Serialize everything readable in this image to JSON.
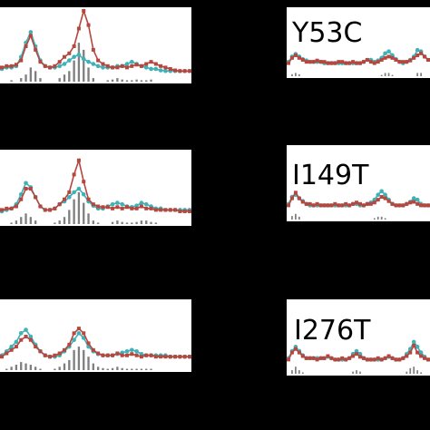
{
  "colors": {
    "background": "#000000",
    "panel": "#ffffff",
    "red_series": "#b5473f",
    "cyan_series": "#3fb1b7",
    "bars": "#7f7f7f"
  },
  "chart_data": [
    {
      "type": "line",
      "title": "",
      "xlabel": "",
      "ylabel": "",
      "x": [
        1,
        2,
        3,
        4,
        5,
        6,
        7,
        8,
        9,
        10,
        11,
        12,
        13,
        14,
        15,
        16,
        17,
        18,
        19,
        20,
        21,
        22,
        23,
        24,
        25,
        26,
        27,
        28,
        29,
        30,
        31,
        32,
        33,
        34,
        35,
        36,
        37,
        38,
        39,
        40
      ],
      "ylim": [
        0,
        1
      ],
      "series": [
        {
          "values": [
            0.2,
            0.22,
            0.22,
            0.24,
            0.3,
            0.5,
            0.65,
            0.45,
            0.28,
            0.22,
            0.2,
            0.22,
            0.28,
            0.35,
            0.4,
            0.5,
            0.75,
            1.0,
            0.8,
            0.45,
            0.3,
            0.25,
            0.22,
            0.2,
            0.2,
            0.22,
            0.2,
            0.22,
            0.24,
            0.22,
            0.25,
            0.28,
            0.25,
            0.22,
            0.2,
            0.18,
            0.16,
            0.15,
            0.15,
            0.15
          ]
        },
        {
          "values": [
            0.18,
            0.2,
            0.2,
            0.22,
            0.35,
            0.55,
            0.7,
            0.5,
            0.3,
            0.22,
            0.2,
            0.2,
            0.22,
            0.25,
            0.3,
            0.35,
            0.38,
            0.32,
            0.28,
            0.25,
            0.22,
            0.2,
            0.2,
            0.2,
            0.22,
            0.22,
            0.25,
            0.28,
            0.25,
            0.22,
            0.2,
            0.18,
            0.18,
            0.16,
            0.15,
            0.15,
            0.15,
            0.15,
            0.15,
            0.15
          ]
        },
        {
          "type": "bar",
          "values": [
            0,
            0,
            0.02,
            0,
            0.05,
            0.1,
            0.2,
            0.15,
            0.05,
            0,
            0,
            0,
            0.05,
            0.1,
            0.15,
            0.3,
            0.55,
            0.45,
            0.2,
            0.05,
            0,
            0,
            0.02,
            0.03,
            0.05,
            0.03,
            0.02,
            0.02,
            0.03,
            0.02,
            0.02,
            0.03,
            0,
            0,
            0,
            0,
            0,
            0,
            0,
            0
          ]
        }
      ]
    },
    {
      "type": "line",
      "title": "Y53C",
      "x": [
        1,
        2,
        3,
        4,
        5,
        6,
        7,
        8,
        9,
        10,
        11,
        12,
        13,
        14,
        15,
        16,
        17,
        18,
        19,
        20,
        21,
        22,
        23,
        24,
        25,
        26,
        27,
        28,
        29,
        30,
        31,
        32,
        33,
        34,
        35,
        36,
        37,
        38,
        39,
        40
      ],
      "ylim": [
        0,
        1
      ],
      "series": [
        {
          "values": [
            0.2,
            0.28,
            0.32,
            0.28,
            0.25,
            0.22,
            0.22,
            0.22,
            0.24,
            0.22,
            0.22,
            0.2,
            0.2,
            0.2,
            0.22,
            0.22,
            0.2,
            0.2,
            0.22,
            0.2,
            0.2,
            0.22,
            0.25,
            0.22,
            0.2,
            0.22,
            0.25,
            0.28,
            0.3,
            0.28,
            0.25,
            0.22,
            0.22,
            0.22,
            0.24,
            0.28,
            0.32,
            0.35,
            0.3,
            0.25
          ]
        },
        {
          "values": [
            0.22,
            0.3,
            0.34,
            0.3,
            0.26,
            0.24,
            0.22,
            0.22,
            0.22,
            0.22,
            0.2,
            0.2,
            0.2,
            0.2,
            0.2,
            0.2,
            0.2,
            0.2,
            0.2,
            0.2,
            0.2,
            0.22,
            0.25,
            0.25,
            0.22,
            0.24,
            0.28,
            0.35,
            0.38,
            0.32,
            0.26,
            0.22,
            0.2,
            0.22,
            0.25,
            0.3,
            0.4,
            0.38,
            0.3,
            0.25
          ]
        },
        {
          "type": "bar",
          "values": [
            0,
            0.03,
            0.05,
            0.03,
            0,
            0,
            0,
            0,
            0,
            0,
            0,
            0,
            0,
            0,
            0,
            0,
            0,
            0,
            0,
            0,
            0,
            0,
            0,
            0,
            0,
            0,
            0.02,
            0.05,
            0.05,
            0.02,
            0,
            0,
            0,
            0,
            0,
            0,
            0.05,
            0.05,
            0,
            0
          ]
        }
      ]
    },
    {
      "type": "line",
      "title": "",
      "x": [
        1,
        2,
        3,
        4,
        5,
        6,
        7,
        8,
        9,
        10,
        11,
        12,
        13,
        14,
        15,
        16,
        17,
        18,
        19,
        20,
        21,
        22,
        23,
        24,
        25,
        26,
        27,
        28,
        29,
        30,
        31,
        32,
        33,
        34,
        35,
        36,
        37,
        38,
        39,
        40
      ],
      "ylim": [
        0,
        1
      ],
      "series": [
        {
          "values": [
            0.2,
            0.22,
            0.22,
            0.25,
            0.35,
            0.5,
            0.5,
            0.38,
            0.25,
            0.2,
            0.2,
            0.22,
            0.28,
            0.35,
            0.45,
            0.7,
            0.9,
            0.6,
            0.35,
            0.28,
            0.25,
            0.24,
            0.24,
            0.22,
            0.24,
            0.22,
            0.24,
            0.22,
            0.22,
            0.25,
            0.22,
            0.22,
            0.2,
            0.2,
            0.2,
            0.2,
            0.2,
            0.18,
            0.18,
            0.18
          ]
        },
        {
          "values": [
            0.18,
            0.2,
            0.22,
            0.28,
            0.42,
            0.58,
            0.52,
            0.38,
            0.25,
            0.2,
            0.2,
            0.22,
            0.28,
            0.32,
            0.38,
            0.45,
            0.5,
            0.42,
            0.32,
            0.26,
            0.22,
            0.22,
            0.25,
            0.28,
            0.3,
            0.28,
            0.25,
            0.24,
            0.26,
            0.3,
            0.28,
            0.25,
            0.22,
            0.22,
            0.2,
            0.2,
            0.2,
            0.2,
            0.2,
            0.2
          ]
        },
        {
          "type": "bar",
          "values": [
            0,
            0,
            0.02,
            0.05,
            0.1,
            0.15,
            0.1,
            0.05,
            0,
            0,
            0,
            0.02,
            0.05,
            0.1,
            0.2,
            0.35,
            0.45,
            0.3,
            0.15,
            0.05,
            0.02,
            0,
            0,
            0.03,
            0.05,
            0.03,
            0.02,
            0.02,
            0.03,
            0.05,
            0.05,
            0.03,
            0.02,
            0,
            0,
            0,
            0,
            0,
            0,
            0
          ]
        }
      ]
    },
    {
      "type": "line",
      "title": "I149T",
      "x": [
        1,
        2,
        3,
        4,
        5,
        6,
        7,
        8,
        9,
        10,
        11,
        12,
        13,
        14,
        15,
        16,
        17,
        18,
        19,
        20,
        21,
        22,
        23,
        24,
        25,
        26,
        27,
        28,
        29,
        30,
        31,
        32,
        33,
        34,
        35,
        36,
        37,
        38,
        39,
        40
      ],
      "ylim": [
        0,
        1
      ],
      "series": [
        {
          "values": [
            0.2,
            0.3,
            0.38,
            0.3,
            0.25,
            0.22,
            0.22,
            0.2,
            0.22,
            0.2,
            0.2,
            0.2,
            0.2,
            0.22,
            0.2,
            0.2,
            0.22,
            0.2,
            0.22,
            0.24,
            0.22,
            0.2,
            0.22,
            0.22,
            0.24,
            0.28,
            0.32,
            0.3,
            0.26,
            0.22,
            0.2,
            0.2,
            0.2,
            0.22,
            0.24,
            0.25,
            0.22,
            0.2,
            0.2,
            0.2
          ]
        },
        {
          "values": [
            0.22,
            0.32,
            0.35,
            0.3,
            0.26,
            0.22,
            0.2,
            0.2,
            0.2,
            0.2,
            0.2,
            0.2,
            0.2,
            0.2,
            0.2,
            0.2,
            0.2,
            0.2,
            0.22,
            0.22,
            0.2,
            0.2,
            0.22,
            0.24,
            0.28,
            0.35,
            0.4,
            0.35,
            0.28,
            0.22,
            0.2,
            0.2,
            0.2,
            0.22,
            0.25,
            0.3,
            0.28,
            0.22,
            0.2,
            0.2
          ]
        },
        {
          "type": "bar",
          "values": [
            0,
            0.05,
            0.08,
            0.04,
            0,
            0,
            0,
            0,
            0,
            0,
            0,
            0,
            0,
            0,
            0,
            0,
            0,
            0,
            0,
            0,
            0,
            0,
            0,
            0,
            0.02,
            0.04,
            0.04,
            0.02,
            0,
            0,
            0,
            0,
            0,
            0,
            0,
            0,
            0,
            0,
            0,
            0
          ]
        }
      ]
    },
    {
      "type": "line",
      "title": "",
      "x": [
        1,
        2,
        3,
        4,
        5,
        6,
        7,
        8,
        9,
        10,
        11,
        12,
        13,
        14,
        15,
        16,
        17,
        18,
        19,
        20,
        21,
        22,
        23,
        24,
        25,
        26,
        27,
        28,
        29,
        30,
        31,
        32,
        33,
        34,
        35,
        36,
        37,
        38,
        39,
        40
      ],
      "ylim": [
        0,
        1
      ],
      "series": [
        {
          "values": [
            0.2,
            0.25,
            0.3,
            0.35,
            0.45,
            0.5,
            0.45,
            0.35,
            0.28,
            0.22,
            0.2,
            0.22,
            0.25,
            0.3,
            0.38,
            0.55,
            0.62,
            0.55,
            0.4,
            0.3,
            0.25,
            0.22,
            0.22,
            0.22,
            0.25,
            0.22,
            0.22,
            0.24,
            0.22,
            0.2,
            0.22,
            0.22,
            0.2,
            0.2,
            0.2,
            0.2,
            0.2,
            0.2,
            0.2,
            0.2
          ]
        },
        {
          "values": [
            0.22,
            0.28,
            0.35,
            0.42,
            0.55,
            0.6,
            0.5,
            0.38,
            0.28,
            0.22,
            0.2,
            0.2,
            0.22,
            0.28,
            0.35,
            0.45,
            0.55,
            0.48,
            0.35,
            0.28,
            0.24,
            0.22,
            0.22,
            0.22,
            0.24,
            0.26,
            0.28,
            0.3,
            0.28,
            0.24,
            0.22,
            0.22,
            0.22,
            0.22,
            0.22,
            0.2,
            0.2,
            0.2,
            0.2,
            0.2
          ]
        },
        {
          "type": "bar",
          "values": [
            0,
            0.02,
            0.05,
            0.08,
            0.12,
            0.1,
            0.08,
            0.05,
            0.02,
            0,
            0,
            0.02,
            0.05,
            0.1,
            0.15,
            0.3,
            0.35,
            0.3,
            0.2,
            0.1,
            0.05,
            0.03,
            0.02,
            0.03,
            0.05,
            0.03,
            0.02,
            0.02,
            0.02,
            0.02,
            0.02,
            0.02,
            0,
            0,
            0,
            0,
            0,
            0,
            0,
            0
          ]
        }
      ]
    },
    {
      "type": "line",
      "title": "I276T",
      "x": [
        1,
        2,
        3,
        4,
        5,
        6,
        7,
        8,
        9,
        10,
        11,
        12,
        13,
        14,
        15,
        16,
        17,
        18,
        19,
        20,
        21,
        22,
        23,
        24,
        25,
        26,
        27,
        28,
        29,
        30,
        31,
        32,
        33,
        34,
        35,
        36,
        37,
        38,
        39,
        40
      ],
      "ylim": [
        0,
        1
      ],
      "series": [
        {
          "values": [
            0.2,
            0.3,
            0.35,
            0.3,
            0.25,
            0.22,
            0.22,
            0.22,
            0.2,
            0.22,
            0.22,
            0.25,
            0.22,
            0.2,
            0.2,
            0.22,
            0.2,
            0.22,
            0.25,
            0.28,
            0.24,
            0.22,
            0.2,
            0.2,
            0.2,
            0.22,
            0.2,
            0.22,
            0.25,
            0.22,
            0.2,
            0.2,
            0.22,
            0.25,
            0.3,
            0.4,
            0.3,
            0.25,
            0.22,
            0.2
          ]
        },
        {
          "values": [
            0.22,
            0.32,
            0.38,
            0.32,
            0.26,
            0.22,
            0.22,
            0.22,
            0.22,
            0.22,
            0.22,
            0.24,
            0.22,
            0.2,
            0.2,
            0.2,
            0.2,
            0.22,
            0.28,
            0.32,
            0.28,
            0.22,
            0.2,
            0.2,
            0.2,
            0.2,
            0.2,
            0.22,
            0.24,
            0.22,
            0.2,
            0.2,
            0.22,
            0.28,
            0.35,
            0.45,
            0.38,
            0.3,
            0.24,
            0.2
          ]
        },
        {
          "type": "bar",
          "values": [
            0,
            0.05,
            0.1,
            0.05,
            0.02,
            0,
            0,
            0,
            0,
            0,
            0,
            0,
            0,
            0,
            0,
            0,
            0,
            0,
            0.03,
            0.05,
            0.03,
            0,
            0,
            0,
            0,
            0,
            0,
            0,
            0,
            0,
            0,
            0,
            0,
            0.03,
            0.08,
            0.1,
            0.05,
            0.02,
            0,
            0
          ]
        }
      ]
    }
  ]
}
